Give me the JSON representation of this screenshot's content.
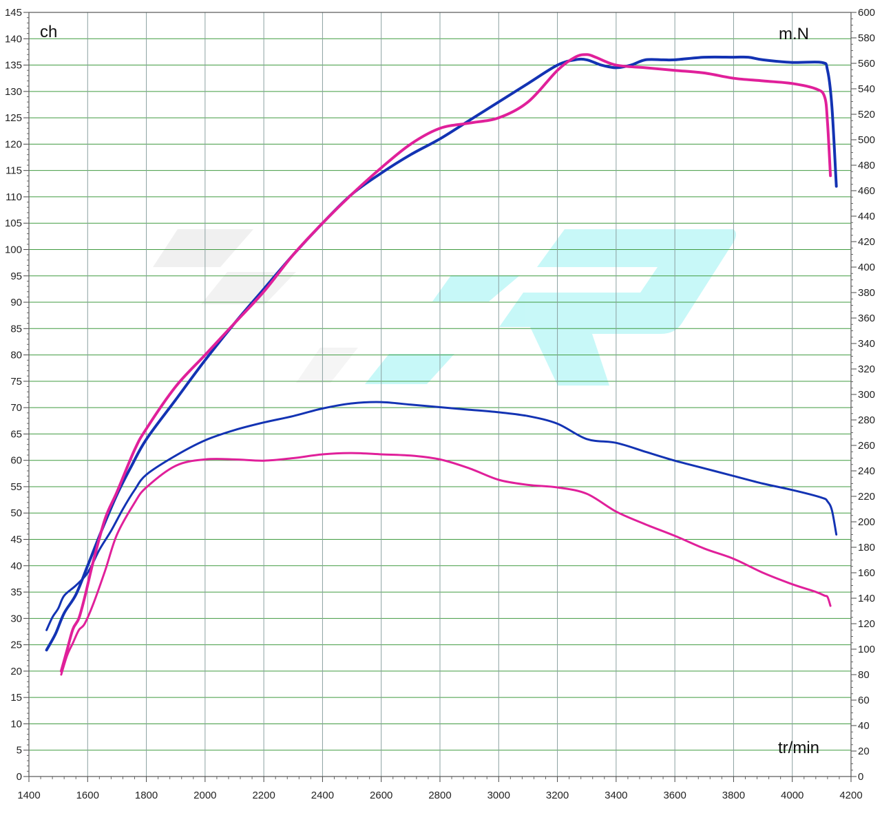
{
  "chart_data": {
    "type": "line",
    "title": "",
    "xlabel": "tr/min",
    "ylabel_left": "ch",
    "ylabel_right": "m.N",
    "xlim": [
      1400,
      4200
    ],
    "ylim_left": [
      0,
      145
    ],
    "ylim_right": [
      0,
      600
    ],
    "x_ticks": [
      1400,
      1600,
      1800,
      2000,
      2200,
      2400,
      2600,
      2800,
      3000,
      3200,
      3400,
      3600,
      3800,
      4000,
      4200
    ],
    "y_left_ticks": [
      0,
      5,
      10,
      15,
      20,
      25,
      30,
      35,
      40,
      45,
      50,
      55,
      60,
      65,
      70,
      75,
      80,
      85,
      90,
      95,
      100,
      105,
      110,
      115,
      120,
      125,
      130,
      135,
      140,
      145
    ],
    "y_right_ticks": [
      0,
      20,
      40,
      60,
      80,
      100,
      120,
      140,
      160,
      180,
      200,
      220,
      240,
      260,
      280,
      300,
      320,
      340,
      360,
      380,
      400,
      420,
      440,
      460,
      480,
      500,
      520,
      540,
      560,
      580,
      600
    ],
    "grid": true,
    "colors": {
      "blue": "#1333b3",
      "pink": "#e0209a",
      "grid": "#3f9a3f"
    },
    "series": [
      {
        "color": "#1333b3",
        "width": 4,
        "axis": "left",
        "x": [
          1460,
          1490,
          1520,
          1560,
          1600,
          1650,
          1700,
          1750,
          1800,
          1900,
          2000,
          2100,
          2200,
          2300,
          2400,
          2500,
          2600,
          2700,
          2800,
          2900,
          3000,
          3100,
          3200,
          3260,
          3300,
          3350,
          3400,
          3450,
          3500,
          3560,
          3600,
          3700,
          3800,
          3850,
          3900,
          4000,
          4100,
          4120,
          4135,
          4150
        ],
        "y": [
          24,
          27,
          31,
          34.5,
          40,
          47,
          53.5,
          59,
          64,
          71.5,
          79,
          86,
          92.5,
          99,
          105,
          110.5,
          114.5,
          118,
          121,
          124.5,
          128,
          131.5,
          135,
          136,
          136,
          135,
          134.5,
          135,
          136,
          136,
          136,
          136.5,
          136.5,
          136.5,
          136,
          135.5,
          135.5,
          134,
          127,
          112
        ]
      },
      {
        "color": "#1333b3",
        "width": 3,
        "axis": "right",
        "x": [
          1460,
          1480,
          1500,
          1520,
          1560,
          1600,
          1640,
          1680,
          1720,
          1760,
          1800,
          1900,
          2000,
          2100,
          2200,
          2300,
          2400,
          2500,
          2600,
          2700,
          2800,
          2900,
          3000,
          3100,
          3200,
          3300,
          3400,
          3500,
          3600,
          3700,
          3800,
          3900,
          4000,
          4100,
          4120,
          4135,
          4150
        ],
        "y": [
          115,
          125,
          132,
          142,
          150,
          160,
          178,
          193,
          210,
          225,
          237,
          252,
          264,
          272,
          278,
          283,
          289,
          293,
          294,
          292,
          290,
          288,
          286,
          283,
          277,
          265,
          262,
          255,
          248,
          242,
          236,
          230,
          225,
          219,
          216,
          209,
          190
        ]
      },
      {
        "color": "#e0209a",
        "width": 4,
        "axis": "left",
        "x": [
          1510,
          1530,
          1550,
          1570,
          1590,
          1620,
          1660,
          1700,
          1760,
          1800,
          1900,
          2000,
          2100,
          2200,
          2300,
          2400,
          2500,
          2600,
          2700,
          2800,
          2900,
          3000,
          3100,
          3200,
          3260,
          3300,
          3330,
          3400,
          3500,
          3600,
          3700,
          3800,
          3900,
          4000,
          4080,
          4110,
          4120,
          4130
        ],
        "y": [
          20,
          24,
          28,
          30,
          34,
          41,
          49,
          54,
          62,
          66,
          74,
          80,
          86,
          92,
          99,
          105,
          110.5,
          115.5,
          120,
          123,
          124,
          125,
          128,
          134,
          136.5,
          137,
          136.5,
          135,
          134.5,
          134,
          133.5,
          132.5,
          132,
          131.5,
          130.5,
          129,
          124,
          114
        ]
      },
      {
        "color": "#e0209a",
        "width": 3,
        "axis": "right",
        "x": [
          1510,
          1530,
          1550,
          1570,
          1590,
          1620,
          1660,
          1700,
          1760,
          1800,
          1900,
          2000,
          2100,
          2200,
          2300,
          2400,
          2500,
          2600,
          2700,
          2800,
          2900,
          3000,
          3100,
          3200,
          3300,
          3400,
          3500,
          3600,
          3700,
          3800,
          3900,
          4000,
          4080,
          4110,
          4120,
          4130
        ],
        "y": [
          80,
          95,
          105,
          115,
          120,
          136,
          162,
          190,
          215,
          227,
          244,
          249,
          249,
          248,
          250,
          253,
          254,
          253,
          252,
          249,
          242,
          233,
          229,
          227,
          222,
          208,
          198,
          189,
          179,
          171,
          160,
          151,
          145,
          142,
          141,
          134
        ]
      }
    ]
  },
  "labels": {
    "left_unit": "ch",
    "right_unit": "m.N",
    "x_unit": "tr/min"
  }
}
